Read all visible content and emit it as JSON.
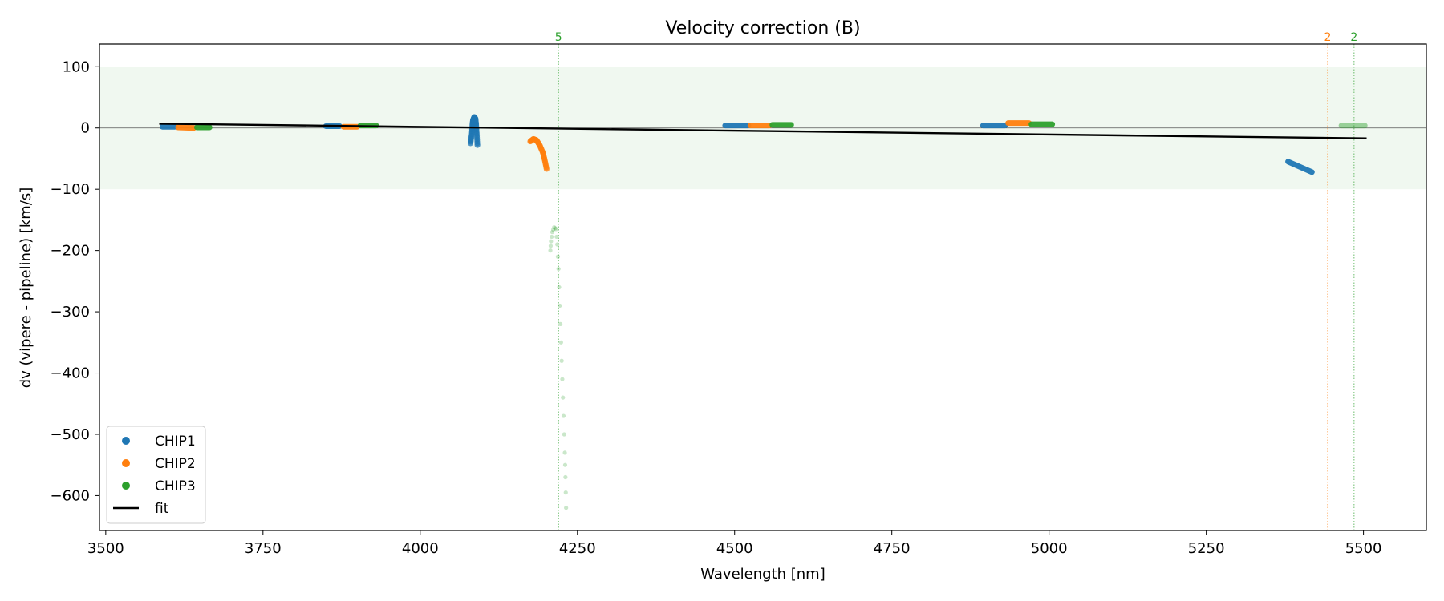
{
  "chart_data": {
    "type": "scatter",
    "title": "Velocity correction (B)",
    "xlabel": "Wavelength [nm]",
    "ylabel": "dv (vipere - pipeline) [km/s]",
    "xlim": [
      3490,
      5600
    ],
    "ylim": [
      -657,
      137
    ],
    "xticks": [
      3500,
      3750,
      4000,
      4250,
      4500,
      4750,
      5000,
      5250,
      5500
    ],
    "yticks": [
      100,
      0,
      -100,
      -200,
      -300,
      -400,
      -500,
      -600
    ],
    "ytick_labels": [
      "100",
      "0",
      "−100",
      "−200",
      "−300",
      "−400",
      "−500",
      "−600"
    ],
    "tolerance_band": [
      -100,
      100
    ],
    "zero_line": 0,
    "colors": {
      "CHIP1": "#1f77b4",
      "CHIP2": "#ff7f0e",
      "CHIP3": "#2ca02c",
      "fit": "#000000",
      "band": "#2ca02c"
    },
    "legend": {
      "placement": "lower-left",
      "entries": [
        "CHIP1",
        "CHIP2",
        "CHIP3",
        "fit"
      ]
    },
    "fit": {
      "x": [
        3585,
        5505
      ],
      "y": [
        7,
        -17
      ]
    },
    "vlines": [
      {
        "x": 4220,
        "label": "5",
        "color": "#2ca02c"
      },
      {
        "x": 5443,
        "label": "2",
        "color": "#ff7f0e"
      },
      {
        "x": 5485,
        "label": "2",
        "color": "#2ca02c"
      }
    ],
    "segments": [
      {
        "chip": "CHIP1",
        "x": [
          3590,
          3610
        ],
        "y": [
          2,
          2
        ]
      },
      {
        "chip": "CHIP2",
        "x": [
          3615,
          3640
        ],
        "y": [
          1,
          0
        ]
      },
      {
        "chip": "CHIP3",
        "x": [
          3645,
          3665
        ],
        "y": [
          1,
          1
        ]
      },
      {
        "chip": "CHIP1",
        "x": [
          3850,
          3872
        ],
        "y": [
          3,
          3
        ]
      },
      {
        "chip": "CHIP2",
        "x": [
          3878,
          3900
        ],
        "y": [
          2,
          2
        ]
      },
      {
        "chip": "CHIP3",
        "x": [
          3905,
          3930
        ],
        "y": [
          4,
          4
        ]
      },
      {
        "chip": "CHIP1",
        "x": [
          4485,
          4522
        ],
        "y": [
          4,
          4
        ]
      },
      {
        "chip": "CHIP2",
        "x": [
          4525,
          4555
        ],
        "y": [
          4,
          4
        ]
      },
      {
        "chip": "CHIP3",
        "x": [
          4560,
          4590
        ],
        "y": [
          5,
          5
        ]
      },
      {
        "chip": "CHIP1",
        "x": [
          4895,
          4930
        ],
        "y": [
          4,
          4
        ]
      },
      {
        "chip": "CHIP2",
        "x": [
          4935,
          4968
        ],
        "y": [
          8,
          8
        ]
      },
      {
        "chip": "CHIP3",
        "x": [
          4972,
          5005
        ],
        "y": [
          6,
          6
        ]
      },
      {
        "chip": "CHIP1",
        "x": [
          5380,
          5418
        ],
        "y": [
          -55,
          -72
        ]
      },
      {
        "chip": "CHIP3",
        "x": [
          5465,
          5502
        ],
        "y": [
          4,
          4
        ],
        "faint": true
      }
    ],
    "curves": [
      {
        "chip": "CHIP1",
        "points": [
          [
            4080,
            -25
          ],
          [
            4082,
            -10
          ],
          [
            4083,
            5
          ],
          [
            4084,
            13
          ],
          [
            4086,
            18
          ],
          [
            4088,
            15
          ],
          [
            4089,
            5
          ],
          [
            4090,
            -10
          ],
          [
            4091,
            -28
          ]
        ]
      },
      {
        "chip": "CHIP2",
        "points": [
          [
            4175,
            -22
          ],
          [
            4180,
            -18
          ],
          [
            4185,
            -20
          ],
          [
            4190,
            -28
          ],
          [
            4195,
            -40
          ],
          [
            4198,
            -52
          ],
          [
            4201,
            -67
          ]
        ]
      },
      {
        "chip": "CHIP3",
        "faint": true,
        "points": [
          [
            4207,
            -200
          ],
          [
            4208,
            -185
          ],
          [
            4210,
            -170
          ],
          [
            4213,
            -162
          ],
          [
            4216,
            -165
          ],
          [
            4218,
            -190
          ],
          [
            4220,
            -230
          ],
          [
            4222,
            -290
          ],
          [
            4224,
            -350
          ],
          [
            4226,
            -410
          ],
          [
            4228,
            -470
          ],
          [
            4230,
            -530
          ],
          [
            4231,
            -570
          ],
          [
            4232,
            -620
          ]
        ]
      }
    ]
  }
}
